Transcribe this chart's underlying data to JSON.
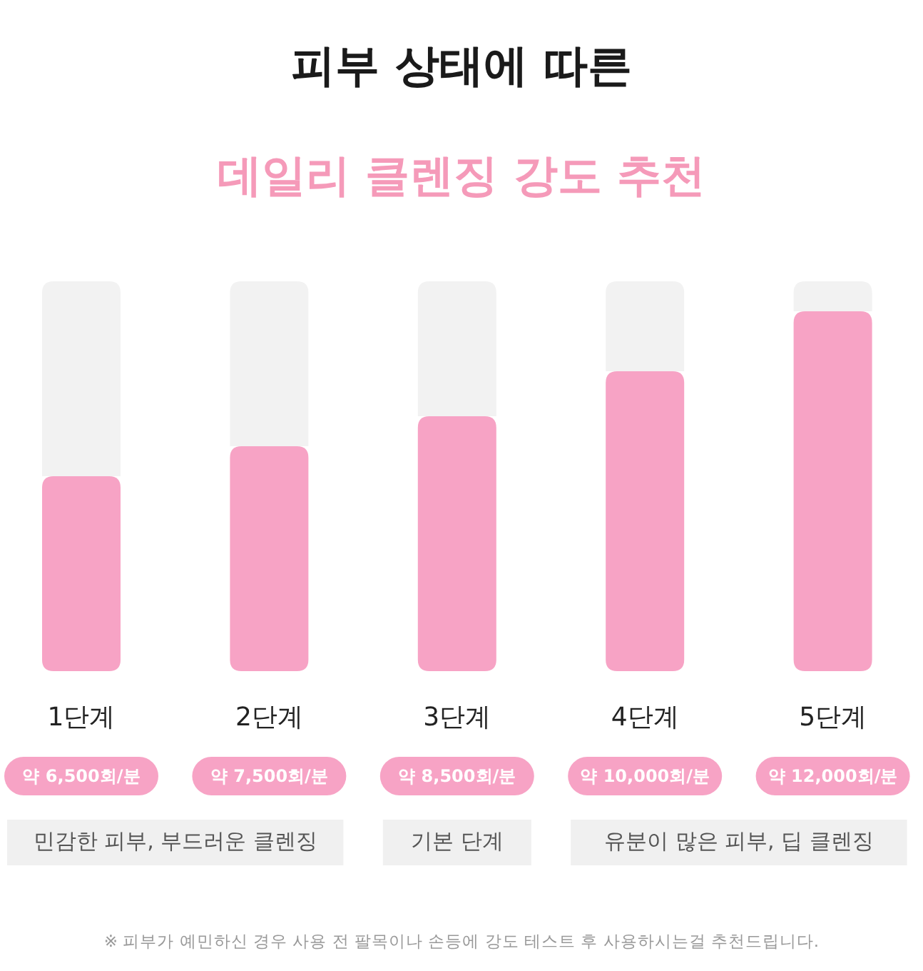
{
  "chart_data": {
    "type": "bar",
    "title": "피부 상태에 따른",
    "subtitle": "데일리 클렌징 강도 추천",
    "stacked": true,
    "ylim": [
      0,
      13000
    ],
    "categories": [
      "1단계",
      "2단계",
      "3단계",
      "4단계",
      "5단계"
    ],
    "series": [
      {
        "color": "#f7a3c5",
        "values": [
          6500,
          7500,
          8500,
          10000,
          12000
        ],
        "value_labels": [
          "약 6,500회/분",
          "약 7,500회/분",
          "약 8,500회/분",
          "약 10,000회/분",
          "약 12,000회/분"
        ]
      },
      {
        "color": "#f2f2f2",
        "values": [
          6500,
          5500,
          4500,
          3000,
          1000
        ]
      }
    ],
    "annotations": [
      "민감한 피부, 부드러운 클렌징",
      "기본 단계",
      "유분이 많은 피부, 딥 클렌징",
      "※ 피부가 예민하신 경우 사용 전 팔목이나 손등에 강도 테스트 후 사용하시는걸 추천드립니다."
    ]
  }
}
